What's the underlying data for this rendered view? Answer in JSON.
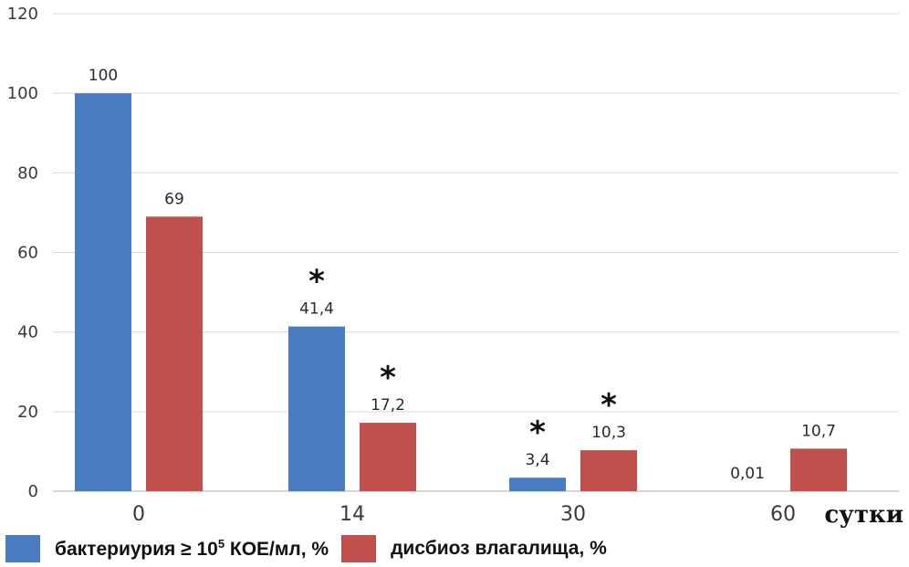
{
  "chart_data": {
    "type": "bar",
    "categories": [
      "0",
      "14",
      "30",
      "60"
    ],
    "series": [
      {
        "name": "бактериурия ≥ 10⁵ КОЕ/мл, %",
        "color": "#4a7cc1",
        "values": [
          100,
          41.4,
          3.4,
          0.01
        ],
        "value_labels": [
          "100",
          "41,4",
          "3,4",
          "0,01"
        ],
        "significant": [
          false,
          true,
          true,
          false
        ]
      },
      {
        "name": "дисбиоз влагалища, %",
        "color": "#c0504d",
        "values": [
          69,
          17.2,
          10.3,
          10.7
        ],
        "value_labels": [
          "69",
          "17,2",
          "10,3",
          "10,7"
        ],
        "significant": [
          false,
          true,
          true,
          false
        ]
      }
    ],
    "significance_marker": "*",
    "xlabel": "сутки",
    "ylabel": "",
    "yticks": [
      0,
      20,
      40,
      60,
      80,
      100,
      120
    ],
    "ylim": [
      0,
      120
    ],
    "grid": true,
    "legend_position": "bottom-left"
  },
  "legend": {
    "s1_prefix": "бактериурия ≥ 10",
    "s1_exp": "5",
    "s1_suffix": " КОЕ/мл, %",
    "s2": "дисбиоз влагалища, %"
  }
}
